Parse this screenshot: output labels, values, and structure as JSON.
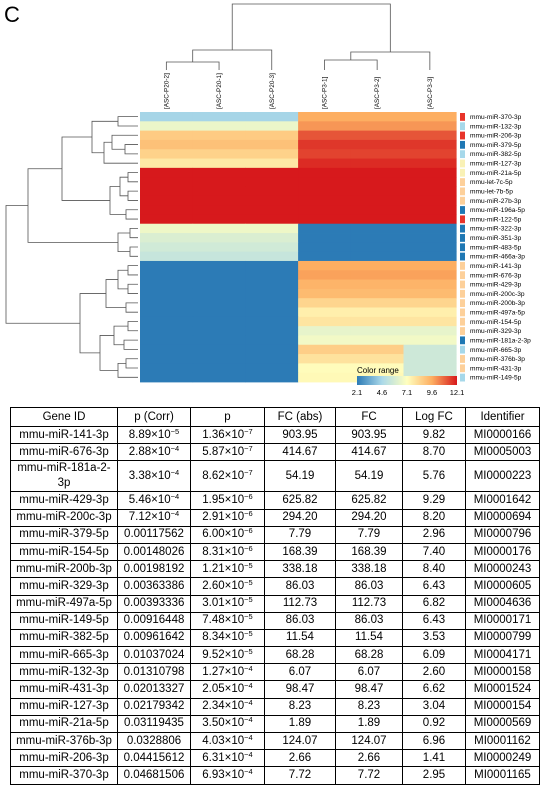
{
  "panel_label": "C",
  "chart_data": [
    {
      "type": "heatmap",
      "title": "",
      "columns": [
        "[ASC-P20-2]",
        "[ASC-P20-1]",
        "[ASC-P20-3]",
        "[ASC-P3-1]",
        "[ASC-P3-2]",
        "[ASC-P3-3]"
      ],
      "rows": [
        "mmu-miR-370-3p",
        "mmu-miR-132-3p",
        "mmu-miR-206-3p",
        "mmu-miR-379-5p",
        "mmu-miR-382-5p",
        "mmu-miR-127-3p",
        "mmu-miR-21a-5p",
        "mmu-let-7c-5p",
        "mmu-let-7b-5p",
        "mmu-miR-27b-3p",
        "mmu-miR-196a-5p",
        "mmu-miR-122-5p",
        "mmu-miR-322-3p",
        "mmu-miR-351-3p",
        "mmu-miR-483-5p",
        "mmu-miR-466a-3p",
        "mmu-miR-141-3p",
        "mmu-miR-676-3p",
        "mmu-miR-429-3p",
        "mmu-miR-200c-3p",
        "mmu-miR-200b-3p",
        "mmu-miR-497a-5p",
        "mmu-miR-154-5p",
        "mmu-miR-329-3p",
        "mmu-miR-181a-2-3p",
        "mmu-miR-665-3p",
        "mmu-miR-376b-3p",
        "mmu-miR-431-3p",
        "mmu-miR-149-5p"
      ],
      "values": [
        [
          4.5,
          4.5,
          4.5,
          9.6,
          9.6,
          9.6
        ],
        [
          6.5,
          6.5,
          6.5,
          10.0,
          10.0,
          10.0
        ],
        [
          8.7,
          8.7,
          8.7,
          11.1,
          11.1,
          11.1
        ],
        [
          9.0,
          9.0,
          9.0,
          11.6,
          11.6,
          11.6
        ],
        [
          8.5,
          8.5,
          8.5,
          11.4,
          11.4,
          11.4
        ],
        [
          7.8,
          7.8,
          7.8,
          11.8,
          11.8,
          11.8
        ],
        [
          12.1,
          12.1,
          12.1,
          12.1,
          12.1,
          12.1
        ],
        [
          12.1,
          12.1,
          12.1,
          12.1,
          12.1,
          12.1
        ],
        [
          12.1,
          12.1,
          12.1,
          12.1,
          12.1,
          12.1
        ],
        [
          12.1,
          12.1,
          12.1,
          12.1,
          12.1,
          12.1
        ],
        [
          12.1,
          12.1,
          12.1,
          12.1,
          12.1,
          12.1
        ],
        [
          12.1,
          12.1,
          12.1,
          12.1,
          12.1,
          12.1
        ],
        [
          6.6,
          6.6,
          6.6,
          2.1,
          2.1,
          2.1
        ],
        [
          6.0,
          6.0,
          6.0,
          2.1,
          2.1,
          2.1
        ],
        [
          5.7,
          5.7,
          5.7,
          2.1,
          2.1,
          2.1
        ],
        [
          5.4,
          5.4,
          5.4,
          2.1,
          2.1,
          2.1
        ],
        [
          2.1,
          2.1,
          2.1,
          9.6,
          9.6,
          9.6
        ],
        [
          2.1,
          2.1,
          2.1,
          9.8,
          9.8,
          9.8
        ],
        [
          2.1,
          2.1,
          2.1,
          9.4,
          9.4,
          9.4
        ],
        [
          2.1,
          2.1,
          2.1,
          9.2,
          9.2,
          9.2
        ],
        [
          2.1,
          2.1,
          2.1,
          8.4,
          8.4,
          8.4
        ],
        [
          2.1,
          2.1,
          2.1,
          7.6,
          7.6,
          7.6
        ],
        [
          2.1,
          2.1,
          2.1,
          7.9,
          7.9,
          7.9
        ],
        [
          2.1,
          2.1,
          2.1,
          6.4,
          6.4,
          6.4
        ],
        [
          2.1,
          2.1,
          2.1,
          6.7,
          6.7,
          6.7
        ],
        [
          2.1,
          2.1,
          2.1,
          8.6,
          8.6,
          5.6
        ],
        [
          2.1,
          2.1,
          2.1,
          8.0,
          8.0,
          5.6
        ],
        [
          2.1,
          2.1,
          2.1,
          7.2,
          7.2,
          5.6
        ],
        [
          2.1,
          2.1,
          2.1,
          7.3,
          7.3,
          5.6
        ]
      ],
      "row_group_colors": [
        "#e8342a",
        "#a6d8ea",
        "#e8342a",
        "#1f78b4",
        "#a6d8ea",
        "#f9f1b5",
        "#f9f1b5",
        "#fdd09a",
        "#fdd09a",
        "#fdd09a",
        "#1f78b4",
        "#e8342a",
        "#1f78b4",
        "#1f78b4",
        "#1f78b4",
        "#1f78b4",
        "#fdd09a",
        "#fdd09a",
        "#fdd09a",
        "#fdd09a",
        "#fdd09a",
        "#fdd09a",
        "#fdd09a",
        "#fdd09a",
        "#1f78b4",
        "#a6d8ea",
        "#fdd09a",
        "#fdd09a",
        "#a6d8ea"
      ],
      "color_scale": {
        "label": "Color range",
        "ticks": [
          "2.1",
          "4.6",
          "7.1",
          "9.6",
          "12.1"
        ],
        "tick_values": [
          2.1,
          4.6,
          7.1,
          9.6,
          12.1
        ],
        "min": 2.1,
        "max": 12.1,
        "colors": [
          "#2c7bb6",
          "#abd9e9",
          "#ffffbf",
          "#fdae61",
          "#d7191c"
        ]
      }
    },
    {
      "type": "table",
      "columns": [
        "Gene ID",
        "p (Corr)",
        "p",
        "FC (abs)",
        "FC",
        "Log FC",
        "Identifier"
      ],
      "rows": [
        {
          "gene": "mmu-miR-141-3p",
          "pcorr_m": "8.89×10",
          "pcorr_e": "−5",
          "p_m": "1.36×10",
          "p_e": "−7",
          "fcabs": "903.95",
          "fc": "903.95",
          "logfc": "9.82",
          "id": "MI0000166"
        },
        {
          "gene": "mmu-miR-676-3p",
          "pcorr_m": "2.88×10",
          "pcorr_e": "−4",
          "p_m": "5.87×10",
          "p_e": "−7",
          "fcabs": "414.67",
          "fc": "414.67",
          "logfc": "8.70",
          "id": "MI0005003"
        },
        {
          "gene": "mmu-miR-181a-2-3p",
          "pcorr_m": "3.38×10",
          "pcorr_e": "−4",
          "p_m": "8.62×10",
          "p_e": "−7",
          "fcabs": "54.19",
          "fc": "54.19",
          "logfc": "5.76",
          "id": "MI0000223"
        },
        {
          "gene": "mmu-miR-429-3p",
          "pcorr_m": "5.46×10",
          "pcorr_e": "−4",
          "p_m": "1.95×10",
          "p_e": "−6",
          "fcabs": "625.82",
          "fc": "625.82",
          "logfc": "9.29",
          "id": "MI0001642"
        },
        {
          "gene": "mmu-miR-200c-3p",
          "pcorr_m": "7.12×10",
          "pcorr_e": "−4",
          "p_m": "2.91×10",
          "p_e": "−6",
          "fcabs": "294.20",
          "fc": "294.20",
          "logfc": "8.20",
          "id": "MI0000694"
        },
        {
          "gene": "mmu-miR-379-5p",
          "pcorr_m": "0.00117562",
          "pcorr_e": "",
          "p_m": "6.00×10",
          "p_e": "−6",
          "fcabs": "7.79",
          "fc": "7.79",
          "logfc": "2.96",
          "id": "MI0000796"
        },
        {
          "gene": "mmu-miR-154-5p",
          "pcorr_m": "0.00148026",
          "pcorr_e": "",
          "p_m": "8.31×10",
          "p_e": "−6",
          "fcabs": "168.39",
          "fc": "168.39",
          "logfc": "7.40",
          "id": "MI0000176"
        },
        {
          "gene": "mmu-miR-200b-3p",
          "pcorr_m": "0.00198192",
          "pcorr_e": "",
          "p_m": "1.21×10",
          "p_e": "−5",
          "fcabs": "338.18",
          "fc": "338.18",
          "logfc": "8.40",
          "id": "MI0000243"
        },
        {
          "gene": "mmu-miR-329-3p",
          "pcorr_m": "0.00363386",
          "pcorr_e": "",
          "p_m": "2.60×10",
          "p_e": "−5",
          "fcabs": "86.03",
          "fc": "86.03",
          "logfc": "6.43",
          "id": "MI0000605"
        },
        {
          "gene": "mmu-miR-497a-5p",
          "pcorr_m": "0.00393336",
          "pcorr_e": "",
          "p_m": "3.01×10",
          "p_e": "−5",
          "fcabs": "112.73",
          "fc": "112.73",
          "logfc": "6.82",
          "id": "MI0004636"
        },
        {
          "gene": "mmu-miR-149-5p",
          "pcorr_m": "0.00916448",
          "pcorr_e": "",
          "p_m": "7.48×10",
          "p_e": "−5",
          "fcabs": "86.03",
          "fc": "86.03",
          "logfc": "6.43",
          "id": "MI0000171"
        },
        {
          "gene": "mmu-miR-382-5p",
          "pcorr_m": "0.00961642",
          "pcorr_e": "",
          "p_m": "8.34×10",
          "p_e": "−5",
          "fcabs": "11.54",
          "fc": "11.54",
          "logfc": "3.53",
          "id": "MI0000799"
        },
        {
          "gene": "mmu-miR-665-3p",
          "pcorr_m": "0.01037024",
          "pcorr_e": "",
          "p_m": "9.52×10",
          "p_e": "−5",
          "fcabs": "68.28",
          "fc": "68.28",
          "logfc": "6.09",
          "id": "MI0004171"
        },
        {
          "gene": "mmu-miR-132-3p",
          "pcorr_m": "0.01310798",
          "pcorr_e": "",
          "p_m": "1.27×10",
          "p_e": "−4",
          "fcabs": "6.07",
          "fc": "6.07",
          "logfc": "2.60",
          "id": "MI0000158"
        },
        {
          "gene": "mmu-miR-431-3p",
          "pcorr_m": "0.02013327",
          "pcorr_e": "",
          "p_m": "2.05×10",
          "p_e": "−4",
          "fcabs": "98.47",
          "fc": "98.47",
          "logfc": "6.62",
          "id": "MI0001524"
        },
        {
          "gene": "mmu-miR-127-3p",
          "pcorr_m": "0.02179342",
          "pcorr_e": "",
          "p_m": "2.34×10",
          "p_e": "−4",
          "fcabs": "8.23",
          "fc": "8.23",
          "logfc": "3.04",
          "id": "MI0000154"
        },
        {
          "gene": "mmu-miR-21a-5p",
          "pcorr_m": "0.03119435",
          "pcorr_e": "",
          "p_m": "3.50×10",
          "p_e": "−4",
          "fcabs": "1.89",
          "fc": "1.89",
          "logfc": "0.92",
          "id": "MI0000569"
        },
        {
          "gene": "mmu-miR-376b-3p",
          "pcorr_m": "0.0328806",
          "pcorr_e": "",
          "p_m": "4.03×10",
          "p_e": "−4",
          "fcabs": "124.07",
          "fc": "124.07",
          "logfc": "6.96",
          "id": "MI0001162"
        },
        {
          "gene": "mmu-miR-206-3p",
          "pcorr_m": "0.04415612",
          "pcorr_e": "",
          "p_m": "6.31×10",
          "p_e": "−4",
          "fcabs": "2.66",
          "fc": "2.66",
          "logfc": "1.41",
          "id": "MI0000249"
        },
        {
          "gene": "mmu-miR-370-3p",
          "pcorr_m": "0.04681506",
          "pcorr_e": "",
          "p_m": "6.93×10",
          "p_e": "−4",
          "fcabs": "7.72",
          "fc": "7.72",
          "logfc": "2.95",
          "id": "MI0001165"
        }
      ]
    }
  ]
}
